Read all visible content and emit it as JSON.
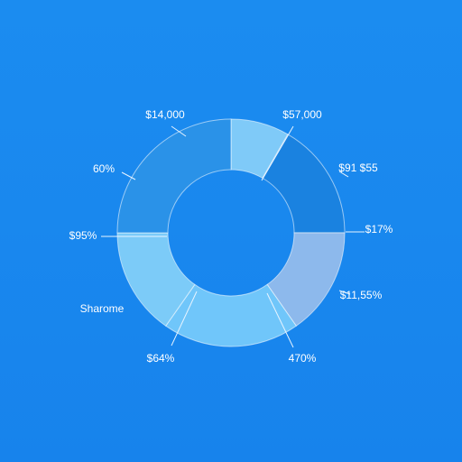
{
  "chart_data": {
    "type": "donut",
    "values": [
      30,
      60,
      55,
      70,
      55,
      90
    ],
    "colors": [
      "#7fcaf8",
      "#1a82e0",
      "#8db9ec",
      "#70c6fa",
      "#7ccbf8",
      "#2a92e8"
    ],
    "annotations": [
      "$14,000",
      "$57,000",
      "60%",
      "$91 $55",
      "$95%",
      "$17%",
      "Sharome",
      "$11,55%",
      "$64%",
      "470%"
    ]
  }
}
